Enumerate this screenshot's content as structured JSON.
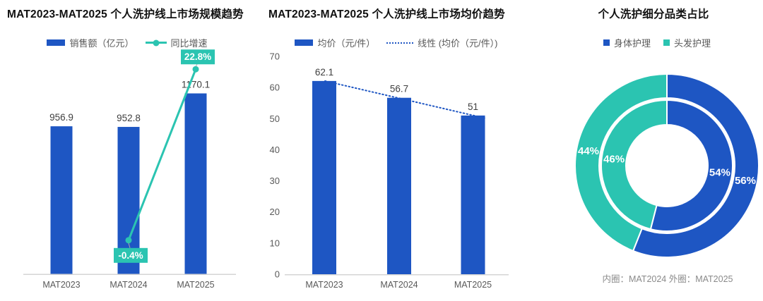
{
  "colors": {
    "blue": "#1E56C3",
    "teal": "#2BC4B1",
    "title_text": "#111111",
    "axis_text": "#595959",
    "value_text": "#3f3f3f",
    "axis_line": "#d4d4d4",
    "note_text": "#8a8a8a",
    "callout_text": "#ffffff",
    "connector": "#a6a6a6"
  },
  "chart_data": [
    {
      "type": "bar+line",
      "title": "MAT2023-MAT2025 个人洗护线上市场规模趋势",
      "categories": [
        "MAT2023",
        "MAT2024",
        "MAT2025"
      ],
      "legend": [
        {
          "label": "销售额（亿元）",
          "marker": "bar",
          "color": "#1E56C3"
        },
        {
          "label": "同比增速",
          "marker": "line-dot",
          "color": "#2BC4B1"
        }
      ],
      "series": [
        {
          "name": "销售额（亿元）",
          "type": "bar",
          "color": "#1E56C3",
          "values": [
            956.9,
            952.8,
            1170.1
          ],
          "labels": [
            "956.9",
            "952.8",
            "1170.1"
          ]
        },
        {
          "name": "同比增速",
          "type": "line",
          "color": "#2BC4B1",
          "values": [
            null,
            -0.4,
            22.8
          ],
          "labels": [
            null,
            "-0.4%",
            "22.8%"
          ]
        }
      ],
      "grid": false,
      "legend_position": "top",
      "y_axis_visible": false
    },
    {
      "type": "bar",
      "title": "MAT2023-MAT2025 个人洗护线上市场均价趋势",
      "categories": [
        "MAT2023",
        "MAT2024",
        "MAT2025"
      ],
      "legend": [
        {
          "label": "均价（元/件）",
          "marker": "bar",
          "color": "#1E56C3"
        },
        {
          "label": "线性 (均价（元/件）)",
          "marker": "dotted-line",
          "color": "#1E56C3"
        }
      ],
      "series": [
        {
          "name": "均价（元/件）",
          "type": "bar",
          "color": "#1E56C3",
          "values": [
            62.1,
            56.7,
            51
          ],
          "labels": [
            "62.1",
            "56.7",
            "51"
          ]
        }
      ],
      "trendline": {
        "name": "线性 (均价（元/件）)",
        "style": "dotted",
        "color": "#1E56C3"
      },
      "ylim": [
        0,
        70
      ],
      "yticks": [
        0,
        10,
        20,
        30,
        40,
        50,
        60,
        70
      ],
      "grid": false,
      "legend_position": "top"
    },
    {
      "type": "donut",
      "title": "个人洗护细分品类占比",
      "categories": [
        "身体护理",
        "头发护理"
      ],
      "legend": [
        {
          "label": "身体护理",
          "color": "#1E56C3"
        },
        {
          "label": "头发护理",
          "color": "#2BC4B1"
        }
      ],
      "rings": [
        {
          "name": "MAT2024",
          "position": "inner",
          "values": [
            54,
            46
          ],
          "labels": [
            "54%",
            "46%"
          ]
        },
        {
          "name": "MAT2025",
          "position": "outer",
          "values": [
            56,
            44
          ],
          "labels": [
            "56%",
            "44%"
          ]
        }
      ],
      "note": "内圈：MAT2024 外圈：MAT2025",
      "legend_position": "top",
      "start_angle": "top",
      "direction": "clockwise"
    }
  ]
}
